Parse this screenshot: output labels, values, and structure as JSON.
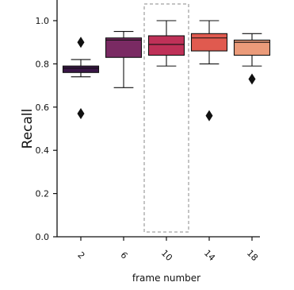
{
  "chart_data": {
    "type": "box",
    "title": "",
    "xlabel": "frame number",
    "ylabel": "Recall",
    "ylim": [
      0.0,
      1.0
    ],
    "yticks": [
      0.0,
      0.2,
      0.4,
      0.6,
      0.8,
      1.0
    ],
    "ytick_labels": [
      "0.0",
      "0.2",
      "0.4",
      "0.6",
      "0.8",
      "1.0"
    ],
    "categories": [
      "2",
      "6",
      "10",
      "14",
      "18"
    ],
    "grid": false,
    "highlighted_category": "10",
    "boxes": [
      {
        "category": "2",
        "whisker_low": 0.74,
        "q1": 0.76,
        "median": 0.78,
        "q3": 0.79,
        "whisker_high": 0.82,
        "outliers": [
          0.9,
          0.57
        ],
        "color": "#3a1547"
      },
      {
        "category": "6",
        "whisker_low": 0.69,
        "q1": 0.83,
        "median": 0.91,
        "q3": 0.92,
        "whisker_high": 0.95,
        "outliers": [],
        "color": "#7a2a63"
      },
      {
        "category": "10",
        "whisker_low": 0.79,
        "q1": 0.84,
        "median": 0.89,
        "q3": 0.93,
        "whisker_high": 1.0,
        "outliers": [],
        "color": "#bf3158"
      },
      {
        "category": "14",
        "whisker_low": 0.8,
        "q1": 0.86,
        "median": 0.92,
        "q3": 0.94,
        "whisker_high": 1.0,
        "outliers": [
          0.56
        ],
        "color": "#e05a4f"
      },
      {
        "category": "18",
        "whisker_low": 0.79,
        "q1": 0.84,
        "median": 0.9,
        "q3": 0.91,
        "whisker_high": 0.94,
        "outliers": [
          0.73
        ],
        "color": "#eb9b7a"
      }
    ]
  }
}
